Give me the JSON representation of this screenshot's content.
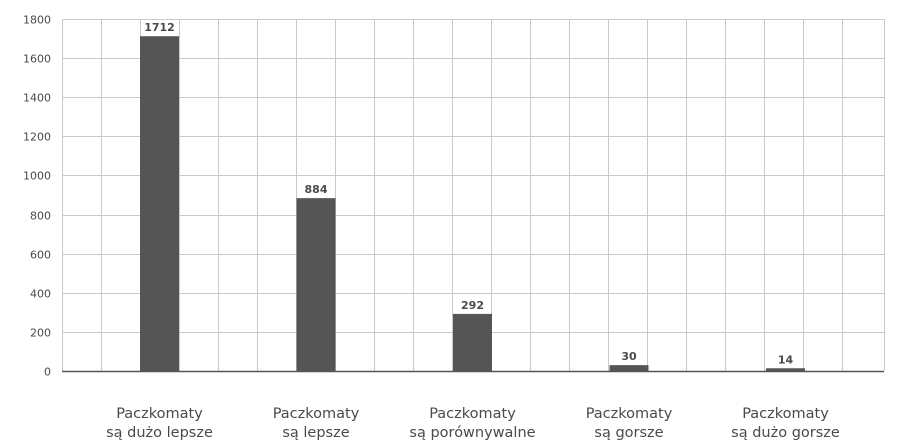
{
  "chart_data": {
    "type": "bar",
    "title": "",
    "xlabel": "",
    "ylabel": "",
    "categories": [
      [
        "Paczkomaty",
        "są dużo lepsze"
      ],
      [
        "Paczkomaty",
        "są lepsze"
      ],
      [
        "Paczkomaty",
        "są porównywalne"
      ],
      [
        "Paczkomaty",
        "są gorsze"
      ],
      [
        "Paczkomaty",
        "są dużo gorsze"
      ]
    ],
    "values": [
      1712,
      884,
      292,
      30,
      14
    ],
    "data_labels": [
      "1712",
      "884",
      "292",
      "30",
      "14"
    ],
    "ylim": [
      0,
      1800
    ],
    "yticks": [
      0,
      200,
      400,
      600,
      800,
      1000,
      1200,
      1400,
      1600,
      1800
    ],
    "grid": true,
    "legend": "none",
    "colors": {
      "bar": "#555555",
      "grid": "#c9c9c9",
      "text": "#4a4a4a"
    }
  }
}
